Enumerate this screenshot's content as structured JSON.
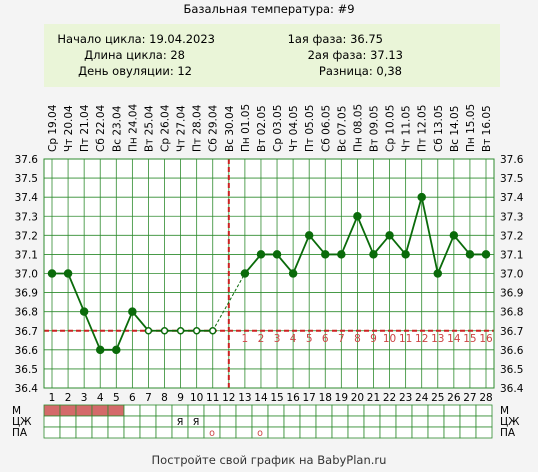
{
  "chart_data": {
    "type": "line",
    "title": "Базальная температура: #9",
    "info": {
      "cycle_start": "Начало цикла: 19.04.2023",
      "cycle_length": "Длина цикла: 28",
      "ovulation_day": "День овуляции: 12",
      "phase1": "1ая фаза: 36.75",
      "phase2": "2ая фаза: 37.13",
      "difference": "Разница: 0,38"
    },
    "weekdays": [
      "Ср",
      "Чт",
      "Пт",
      "Сб",
      "Вс",
      "Пн",
      "Вт",
      "Ср",
      "Чт",
      "Пт",
      "Сб",
      "Вс",
      "Пн",
      "Вт",
      "Ср",
      "Чт",
      "Пт",
      "Сб",
      "Вс",
      "Пн",
      "Вт",
      "Ср",
      "Чт",
      "Пт",
      "Сб",
      "Вс",
      "Пн",
      "Вт"
    ],
    "dates": [
      "19.04",
      "20.04",
      "21.04",
      "22.04",
      "23.04",
      "24.04",
      "25.04",
      "26.04",
      "27.04",
      "28.04",
      "29.04",
      "30.04",
      "01.05",
      "02.05",
      "03.05",
      "04.05",
      "05.05",
      "06.05",
      "07.05",
      "08.05",
      "09.05",
      "10.05",
      "11.05",
      "12.05",
      "13.05",
      "14.05",
      "15.05",
      "16.05"
    ],
    "days": [
      1,
      2,
      3,
      4,
      5,
      6,
      7,
      8,
      9,
      10,
      11,
      12,
      13,
      14,
      15,
      16,
      17,
      18,
      19,
      20,
      21,
      22,
      23,
      24,
      25,
      26,
      27,
      28
    ],
    "y_ticks": [
      "36.4",
      "36.5",
      "36.6",
      "36.7",
      "36.8",
      "36.9",
      "37.0",
      "37.1",
      "37.2",
      "37.3",
      "37.4",
      "37.5",
      "37.6"
    ],
    "ylim": [
      36.4,
      37.6
    ],
    "values": [
      37.0,
      37.0,
      36.8,
      36.6,
      36.6,
      36.8,
      36.7,
      36.7,
      36.7,
      36.7,
      36.7,
      null,
      37.0,
      37.1,
      37.1,
      37.0,
      37.2,
      37.1,
      37.1,
      37.3,
      37.1,
      37.2,
      37.1,
      37.4,
      37.0,
      37.2,
      37.1,
      37.1
    ],
    "hollow_points": [
      7,
      8,
      9,
      10,
      11
    ],
    "coverline": 36.7,
    "ovulation_line_day": 12,
    "luteal_labels": [
      "1",
      "2",
      "3",
      "4",
      "5",
      "6",
      "7",
      "8",
      "9",
      "10",
      "11",
      "12",
      "13",
      "14",
      "15",
      "16"
    ],
    "luteal_start_day": 13,
    "rows": {
      "labels": [
        "М",
        "ЦЖ",
        "ПА"
      ],
      "menstruation_days": [
        1,
        2,
        3,
        4,
        5
      ],
      "cm_marks": [
        {
          "day": 9,
          "text": "Я"
        },
        {
          "day": 10,
          "text": "Я"
        }
      ],
      "pa_marks": [
        {
          "day": 11,
          "text": "о"
        },
        {
          "day": 14,
          "text": "о"
        }
      ]
    },
    "footer": "Постройте свой график на BabyPlan.ru",
    "colors": {
      "line": "#0a6b0a",
      "grid": "#2e8b2e",
      "coverline": "#cc2222",
      "menstruation": "#d46a6a",
      "info_bg": "#eaf5d8",
      "luteal_text": "#cc4444"
    }
  }
}
